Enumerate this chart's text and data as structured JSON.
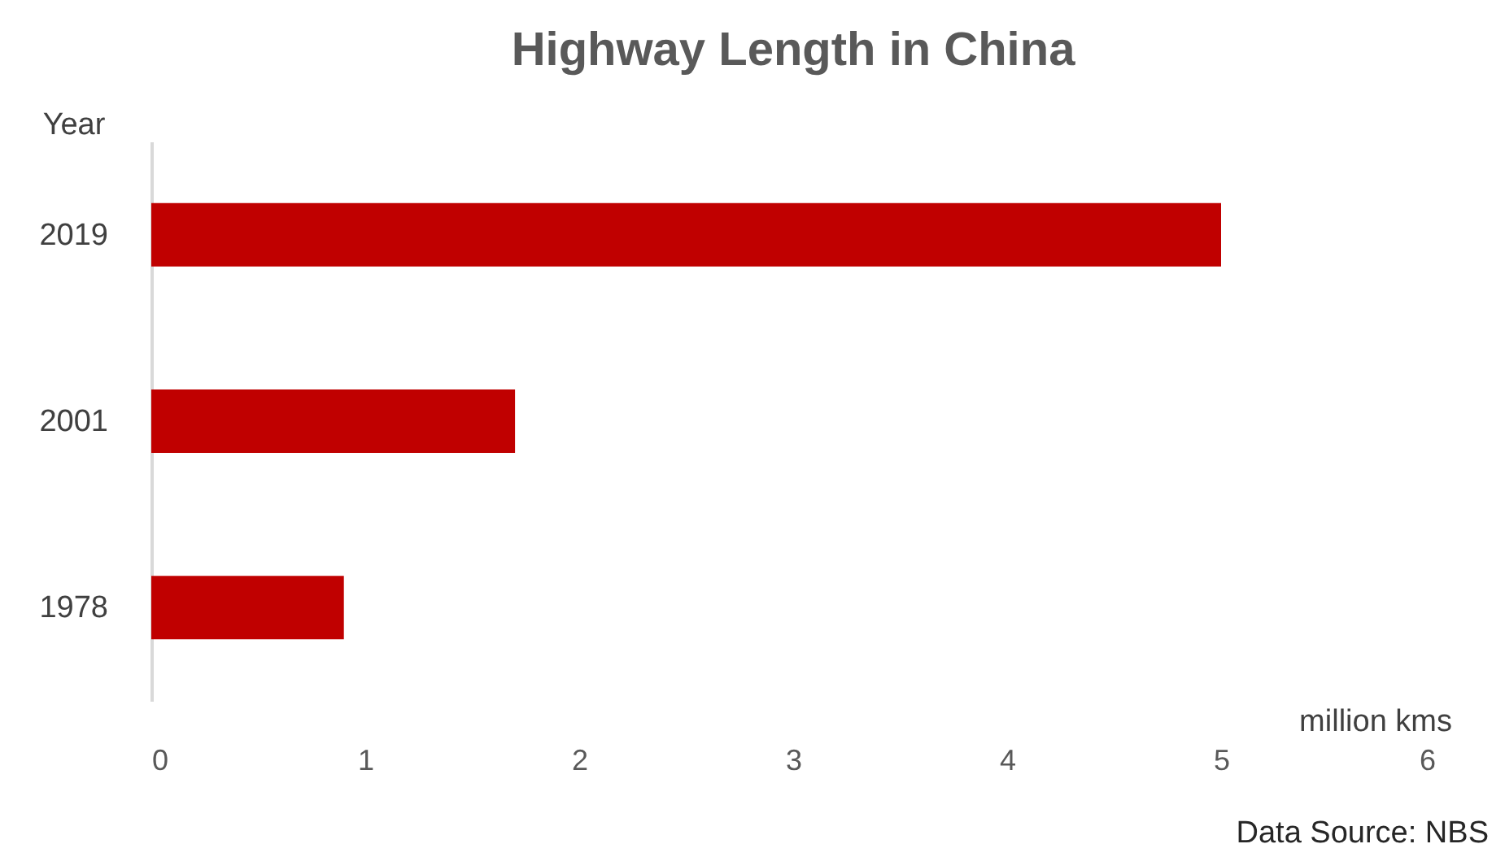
{
  "chart_data": {
    "type": "bar",
    "title": "Highway Length in China",
    "xlabel": "million kms",
    "ylabel": "Year",
    "categories": [
      "2019",
      "2001",
      "1978"
    ],
    "values": [
      5.0,
      1.7,
      0.9
    ],
    "color": "#c00000",
    "orientation": "horizontal",
    "xlim": [
      0,
      6
    ],
    "xticks": [
      0,
      1,
      2,
      3,
      4,
      5,
      6
    ],
    "grid": false,
    "annotations": [
      "Data Source: NBS"
    ]
  }
}
